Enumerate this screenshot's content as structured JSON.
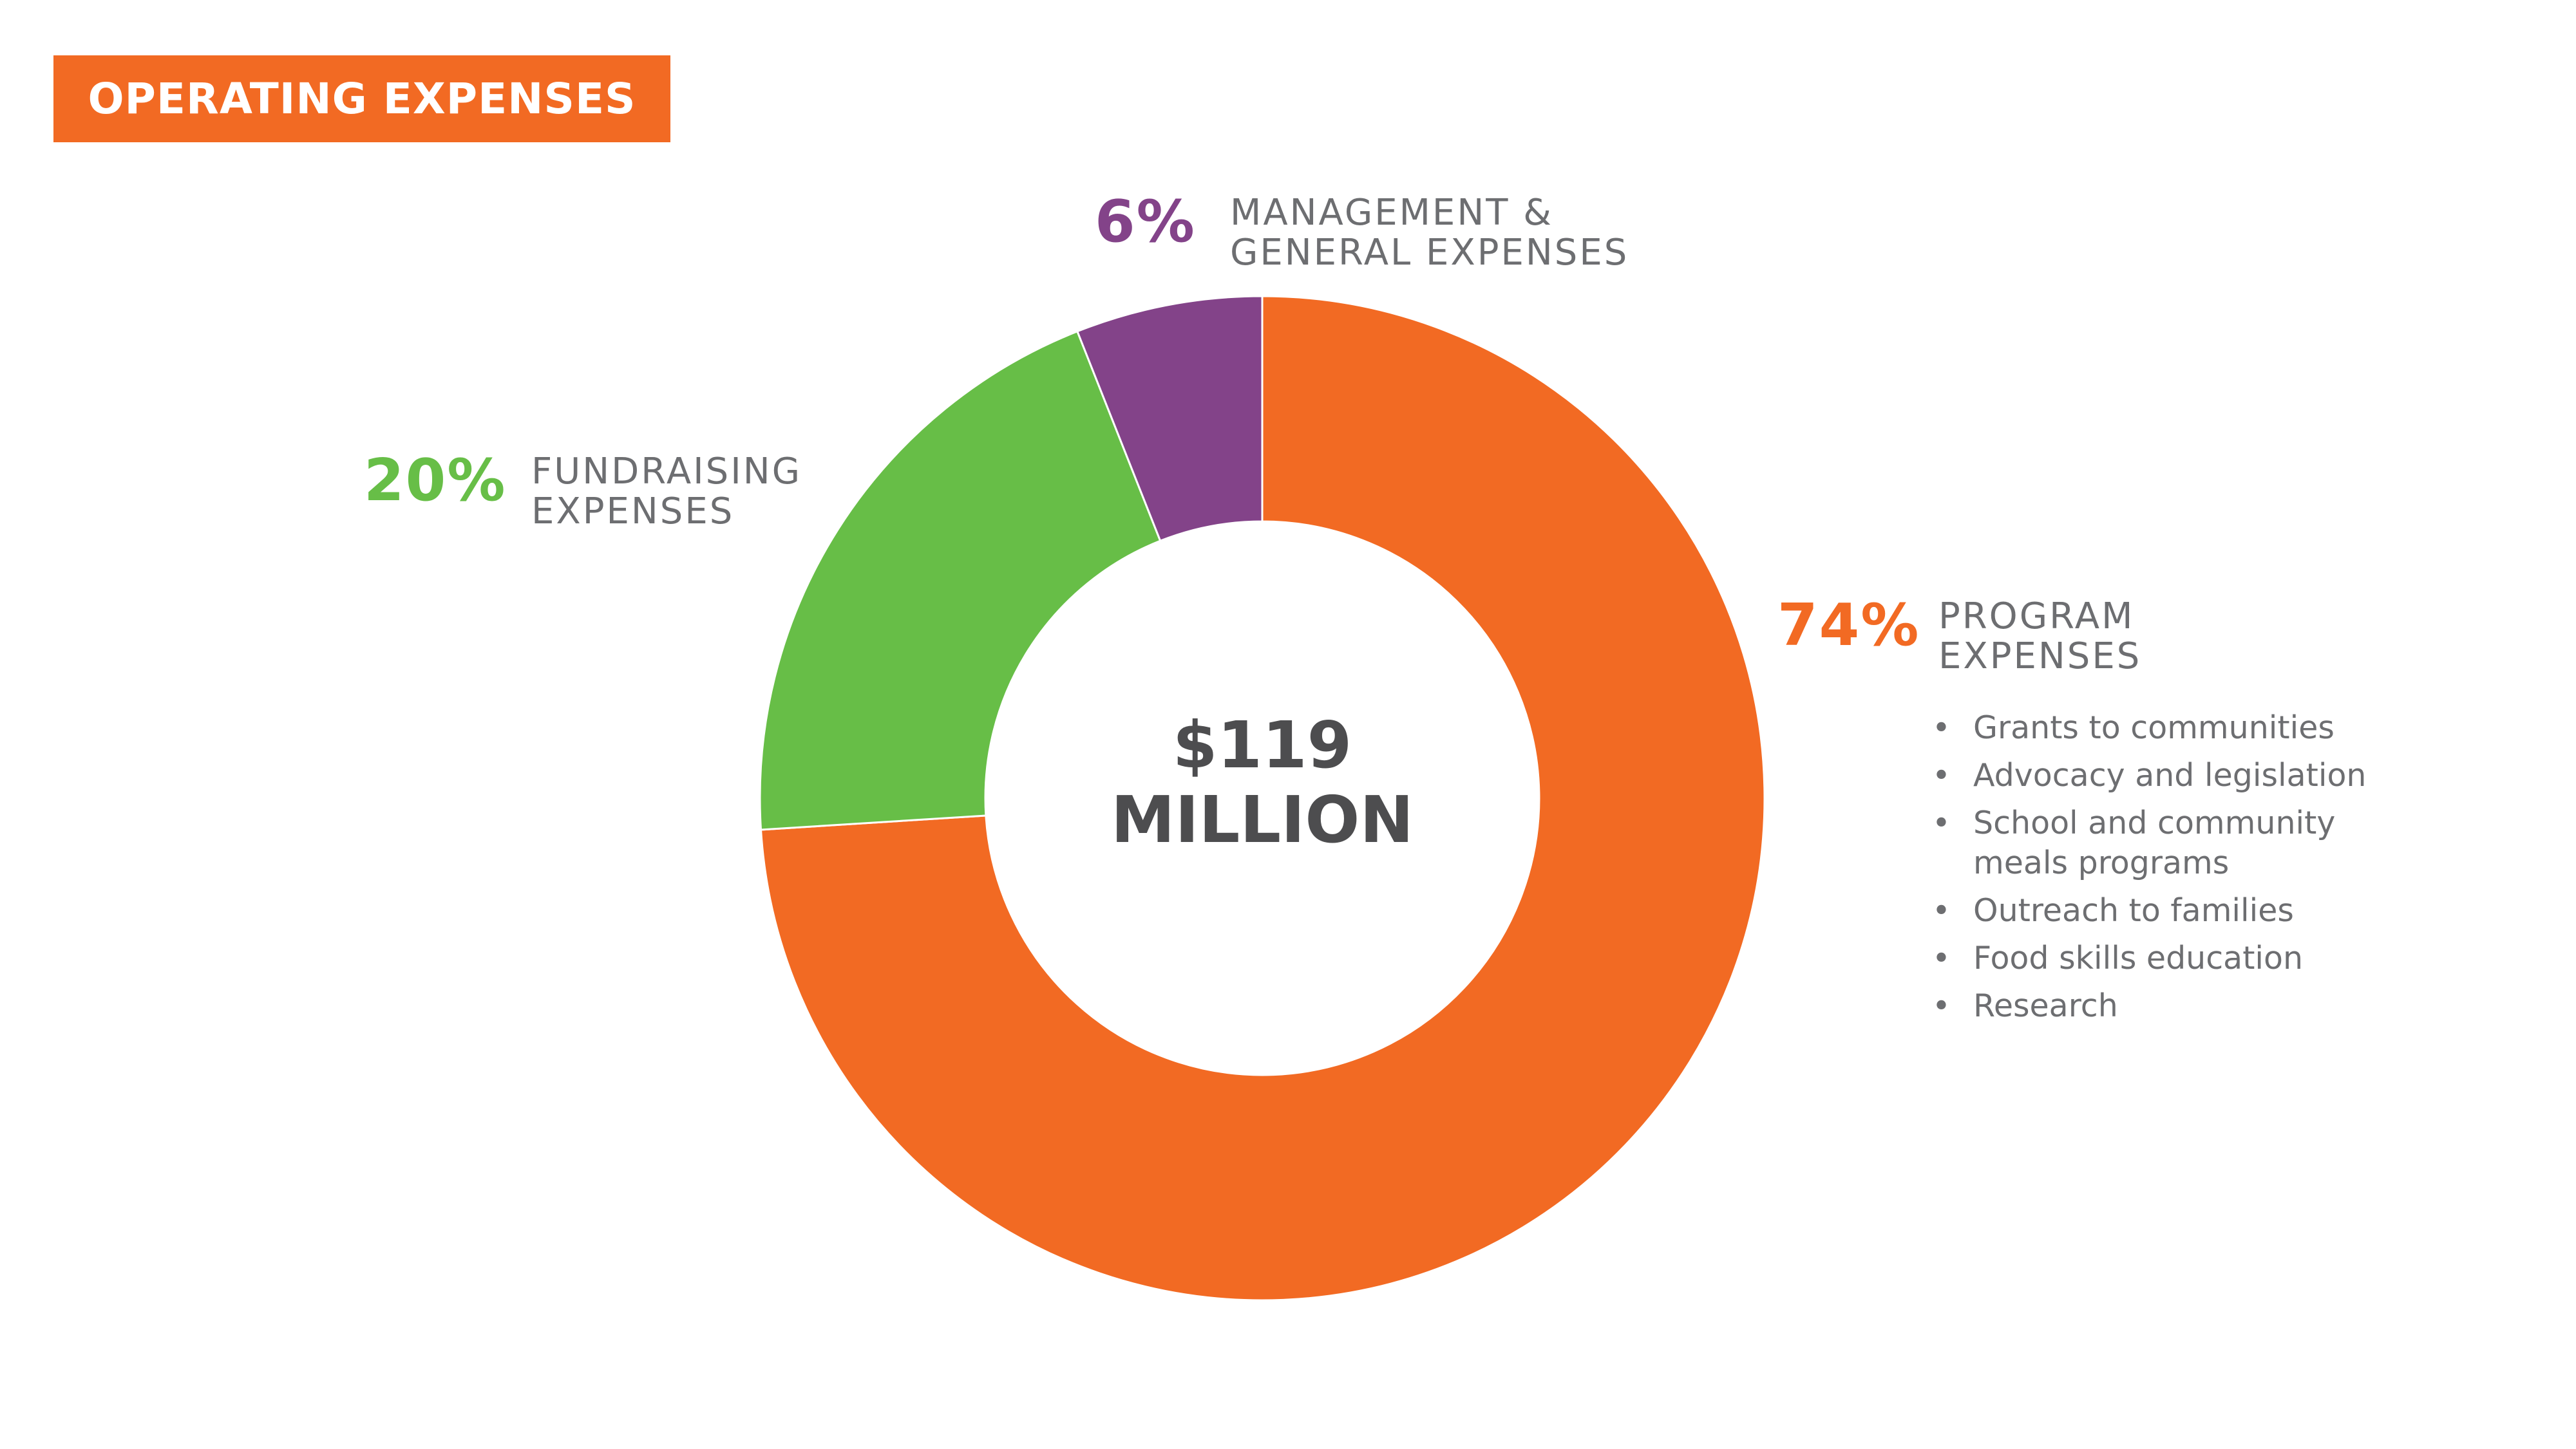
{
  "title": "OPERATING EXPENSES",
  "colors": {
    "program": "#f26a23",
    "fundraising": "#67be47",
    "management": "#834389",
    "badge": "#f26a23",
    "text_gray": "#6d6e71",
    "center_text": "#4d4d4f"
  },
  "center": {
    "line1": "$119",
    "line2": "MILLION"
  },
  "labels": {
    "program": {
      "pct": "74%",
      "line1": "PROGRAM",
      "line2": "EXPENSES",
      "bullets": [
        [
          "Grants to communities"
        ],
        [
          "Advocacy and legislation"
        ],
        [
          "School and community",
          "meals programs"
        ],
        [
          "Outreach to families"
        ],
        [
          "Food skills education"
        ],
        [
          "Research"
        ]
      ]
    },
    "fundraising": {
      "pct": "20%",
      "line1": "FUNDRAISING",
      "line2": "EXPENSES"
    },
    "management": {
      "pct": "6%",
      "line1": "MANAGEMENT &",
      "line2": "GENERAL EXPENSES"
    }
  },
  "chart_data": {
    "type": "pie",
    "donut": true,
    "title": "OPERATING EXPENSES",
    "total_label": "$119 MILLION",
    "start_angle_deg": 0,
    "direction": "clockwise",
    "slices": [
      {
        "name": "PROGRAM EXPENSES",
        "value": 74,
        "color": "#f26a23"
      },
      {
        "name": "FUNDRAISING EXPENSES",
        "value": 20,
        "color": "#67be47"
      },
      {
        "name": "MANAGEMENT & GENERAL EXPENSES",
        "value": 6,
        "color": "#834389"
      }
    ]
  }
}
